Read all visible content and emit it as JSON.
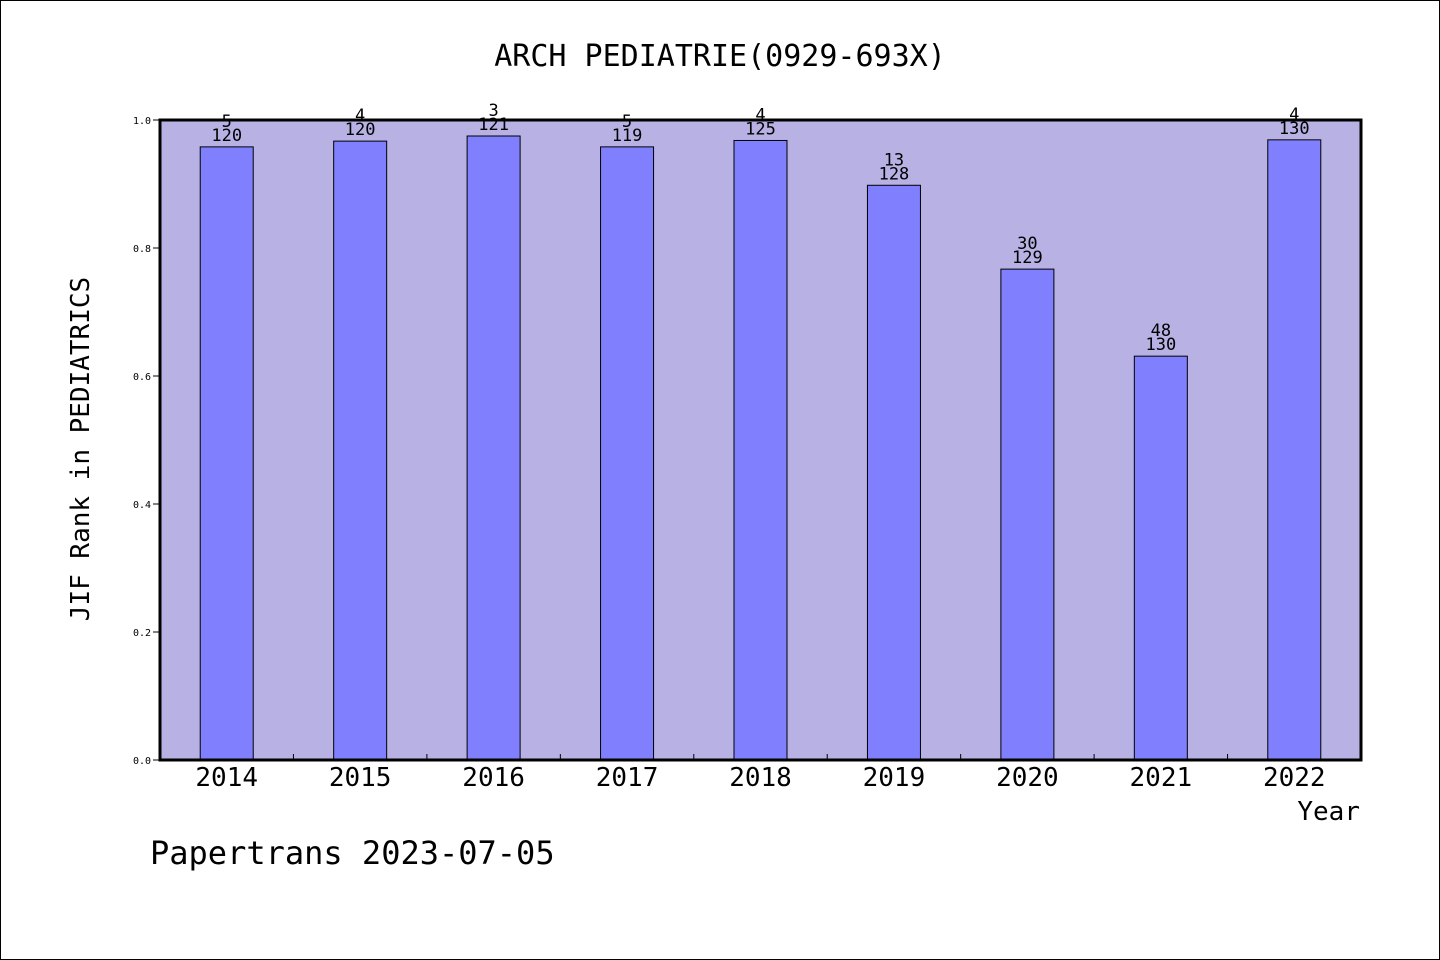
{
  "footer": {
    "text": "Papertrans 2023-07-05"
  },
  "colors": {
    "plot_bg": "#b7b1e4",
    "bar": "#8080ff",
    "axis": "#000000"
  },
  "chart_data": {
    "type": "bar",
    "title": "ARCH PEDIATRIE(0929-693X)",
    "xlabel": "Year",
    "ylabel": "JIF Rank in PEDIATRICS",
    "ylim": [
      0,
      1
    ],
    "yticks": [
      "0.0",
      "0.2",
      "0.4",
      "0.6",
      "0.8",
      "1.0"
    ],
    "categories": [
      "2014",
      "2015",
      "2016",
      "2017",
      "2018",
      "2019",
      "2020",
      "2021",
      "2022"
    ],
    "values": [
      0.958,
      0.967,
      0.975,
      0.958,
      0.968,
      0.898,
      0.767,
      0.631,
      0.969
    ],
    "ranks": [
      "5",
      "4",
      "3",
      "5",
      "4",
      "13",
      "30",
      "48",
      "4"
    ],
    "totals": [
      "120",
      "120",
      "121",
      "119",
      "125",
      "128",
      "129",
      "130",
      "130"
    ],
    "grid": false,
    "legend": "none"
  }
}
